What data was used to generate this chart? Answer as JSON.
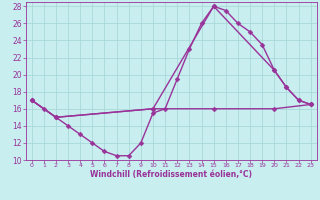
{
  "title": "",
  "xlabel": "Windchill (Refroidissement éolien,°C)",
  "bg_color": "#c8eef0",
  "line_color": "#993399",
  "grid_color": "#aad8d8",
  "xlim": [
    -0.5,
    23.5
  ],
  "ylim": [
    10,
    28.5
  ],
  "xticks": [
    0,
    1,
    2,
    3,
    4,
    5,
    6,
    7,
    8,
    9,
    10,
    11,
    12,
    13,
    14,
    15,
    16,
    17,
    18,
    19,
    20,
    21,
    22,
    23
  ],
  "yticks": [
    10,
    12,
    14,
    16,
    18,
    20,
    22,
    24,
    26,
    28
  ],
  "line1_x": [
    0,
    1,
    2,
    3,
    4,
    5,
    6,
    7,
    8,
    9,
    10,
    11,
    12,
    13,
    14,
    15,
    16,
    17,
    18,
    19,
    20,
    21,
    22,
    23
  ],
  "line1_y": [
    17.0,
    16.0,
    15.0,
    14.0,
    13.0,
    12.0,
    11.0,
    10.5,
    10.5,
    12.0,
    15.5,
    16.0,
    19.5,
    23.0,
    26.0,
    28.0,
    27.5,
    26.0,
    25.0,
    23.5,
    20.5,
    18.5,
    17.0,
    16.5
  ],
  "line2_x": [
    0,
    2,
    10,
    15,
    20,
    21,
    22,
    23
  ],
  "line2_y": [
    17.0,
    15.0,
    16.0,
    28.0,
    20.5,
    18.5,
    17.0,
    16.5
  ],
  "line3_x": [
    0,
    2,
    10,
    15,
    20,
    23
  ],
  "line3_y": [
    17.0,
    15.0,
    16.0,
    16.0,
    16.0,
    16.5
  ],
  "markersize": 2.5,
  "linewidth": 1.0
}
